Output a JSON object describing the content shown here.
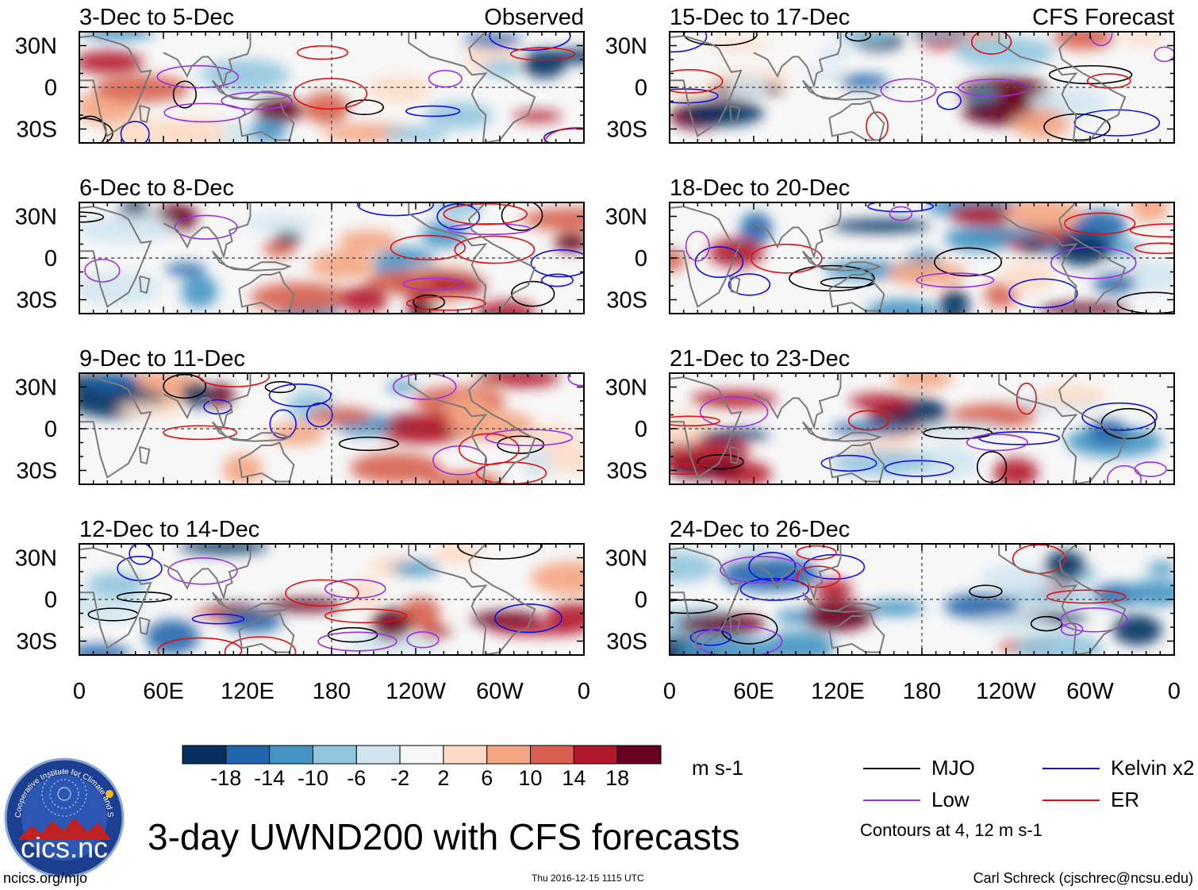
{
  "chart_data": {
    "type": "heatmap",
    "title": "3-day UWND200 with CFS forecasts",
    "variable": "200-hPa zonal wind anomaly (UWND200), 3-day means",
    "units": "m s-1",
    "longitude_ticks": [
      "0",
      "60E",
      "120E",
      "180",
      "120W",
      "60W",
      "0"
    ],
    "latitude_ticks": [
      "30N",
      "0",
      "30S"
    ],
    "xlim_degrees_east": [
      0,
      360
    ],
    "ylim_degrees": [
      -40,
      40
    ],
    "color_scale": {
      "tick_labels": [
        "-18",
        "-14",
        "-10",
        "-6",
        "-2",
        "2",
        "6",
        "10",
        "14",
        "18"
      ],
      "colors": [
        "#053061",
        "#2166ac",
        "#4393c3",
        "#92c5de",
        "#d1e5f0",
        "#f7f7f7",
        "#fddbc7",
        "#f4a582",
        "#d6604d",
        "#b2182b",
        "#67001f"
      ]
    },
    "contours": {
      "note": "Contours at 4, 12 m s-1",
      "series": [
        {
          "name": "MJO",
          "color": "#000000"
        },
        {
          "name": "Kelvin x2",
          "color": "#1010e0"
        },
        {
          "name": "Low",
          "color": "#9b30e0"
        },
        {
          "name": "ER",
          "color": "#e01010"
        }
      ]
    },
    "panels": [
      {
        "period": "3-Dec to 5-Dec",
        "source": "Observed"
      },
      {
        "period": "6-Dec to 8-Dec",
        "source": ""
      },
      {
        "period": "9-Dec to 11-Dec",
        "source": ""
      },
      {
        "period": "12-Dec to 14-Dec",
        "source": ""
      },
      {
        "period": "15-Dec to 17-Dec",
        "source": "CFS Forecast"
      },
      {
        "period": "18-Dec to 20-Dec",
        "source": ""
      },
      {
        "period": "21-Dec to 23-Dec",
        "source": ""
      },
      {
        "period": "24-Dec to 26-Dec",
        "source": ""
      }
    ]
  },
  "logo": {
    "text": "cics.nc",
    "ring_text": "Cooperative Institute for Climate and Satellites"
  },
  "footer": {
    "url": "ncics.org/mjo",
    "timestamp": "Thu 2016-12-15 1115 UTC",
    "author": "Carl Schreck (cjschrec@ncsu.edu)"
  }
}
